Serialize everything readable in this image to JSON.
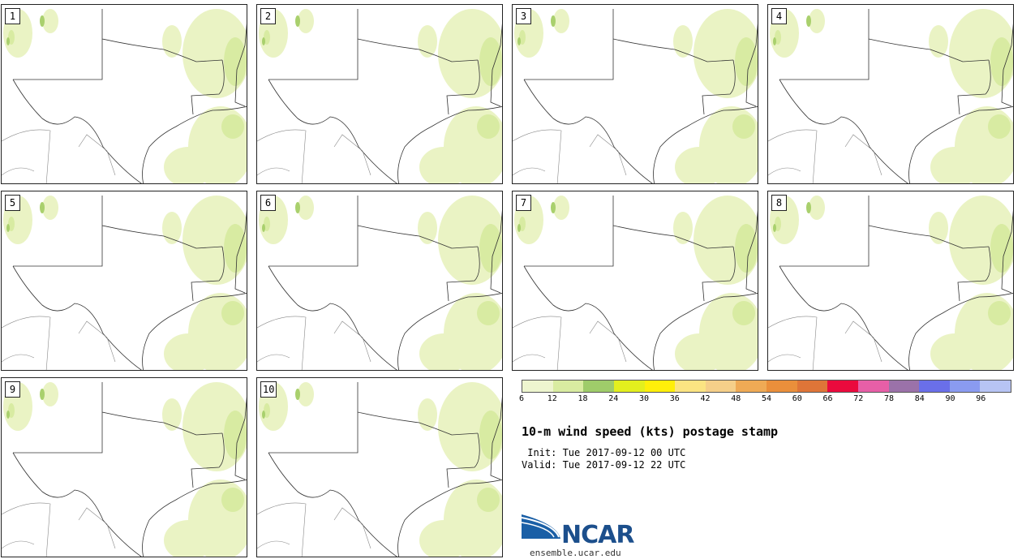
{
  "panels": [
    {
      "label": "1"
    },
    {
      "label": "2"
    },
    {
      "label": "3"
    },
    {
      "label": "4"
    },
    {
      "label": "5"
    },
    {
      "label": "6"
    },
    {
      "label": "7"
    },
    {
      "label": "8"
    },
    {
      "label": "9"
    },
    {
      "label": "10"
    }
  ],
  "colorbar": {
    "colors": [
      "#eef5cf",
      "#d9eca1",
      "#9fcc6a",
      "#e3ef1e",
      "#ffef0a",
      "#fbe482",
      "#f5cf89",
      "#efaa55",
      "#ea8f3b",
      "#df7538",
      "#ea0a3d",
      "#e75fa7",
      "#9b72a9",
      "#6a6fe9",
      "#8a9bf0",
      "#b7c4f4"
    ],
    "ticks": [
      "6",
      "12",
      "18",
      "24",
      "30",
      "36",
      "42",
      "48",
      "54",
      "60",
      "66",
      "72",
      "78",
      "84",
      "90",
      "96"
    ]
  },
  "title": "10-m wind speed (kts) postage stamp",
  "init": " Init: Tue 2017-09-12 00 UTC",
  "valid": "Valid: Tue 2017-09-12 22 UTC",
  "logo": {
    "name": "NCAR",
    "site": "ensemble.ucar.edu",
    "color": "#1c4f8c"
  }
}
